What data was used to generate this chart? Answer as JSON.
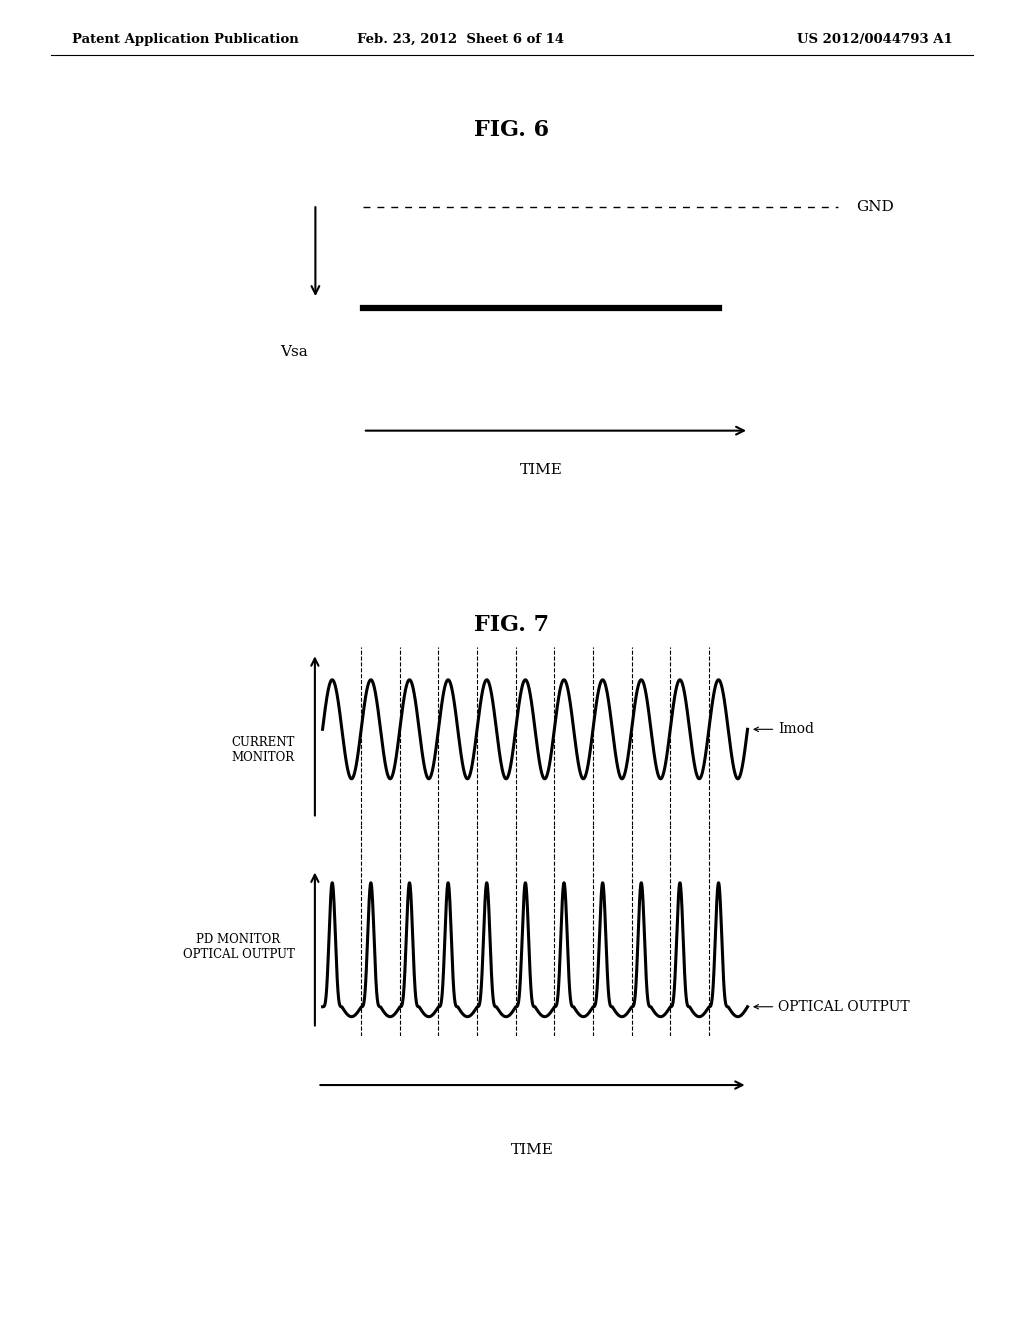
{
  "background_color": "#ffffff",
  "header_left": "Patent Application Publication",
  "header_center": "Feb. 23, 2012  Sheet 6 of 14",
  "header_right": "US 2012/0044793 A1",
  "fig6_title": "FIG. 6",
  "fig7_title": "FIG. 7",
  "fig6_gnd_label": "GND",
  "fig6_vsa_label": "Vsa",
  "fig6_time_label": "TIME",
  "fig7_current_monitor_label": "CURRENT\nMONITOR",
  "fig7_imod_label": "Imod",
  "fig7_pd_monitor_label": "PD MONITOR\nOPTICAL OUTPUT",
  "fig7_optical_output_label": "OPTICAL OUTPUT",
  "fig7_time_label": "TIME",
  "num_sine_cycles": 11,
  "num_pulse_cycles": 11
}
